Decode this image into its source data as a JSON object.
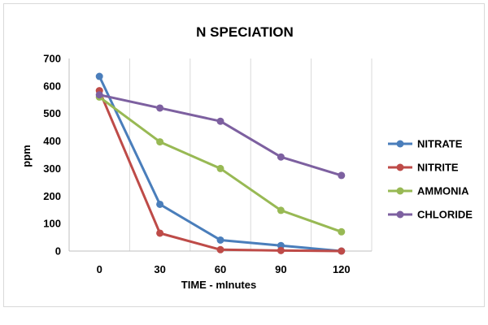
{
  "chart_data": {
    "type": "line",
    "title": "N  SPECIATION",
    "xlabel": "TIME - mInutes",
    "ylabel": "ppm",
    "x": [
      0,
      30,
      60,
      90,
      120
    ],
    "x_tick_labels": [
      "0",
      "30",
      "60",
      "90",
      "120"
    ],
    "ylim": [
      0,
      700
    ],
    "y_ticks": [
      0,
      100,
      200,
      300,
      400,
      500,
      600,
      700
    ],
    "grid": "vertical",
    "legend_position": "right",
    "series": [
      {
        "name": "NITRATE",
        "color": "#4a7ebb",
        "values": [
          635,
          170,
          40,
          20,
          0
        ]
      },
      {
        "name": "NITRITE",
        "color": "#be4b48",
        "values": [
          583,
          65,
          5,
          2,
          0
        ]
      },
      {
        "name": "AMMONIA",
        "color": "#98b954",
        "values": [
          560,
          397,
          300,
          148,
          70
        ]
      },
      {
        "name": "CHLORIDE",
        "color": "#7d60a0",
        "values": [
          568,
          520,
          472,
          342,
          275
        ]
      }
    ]
  }
}
